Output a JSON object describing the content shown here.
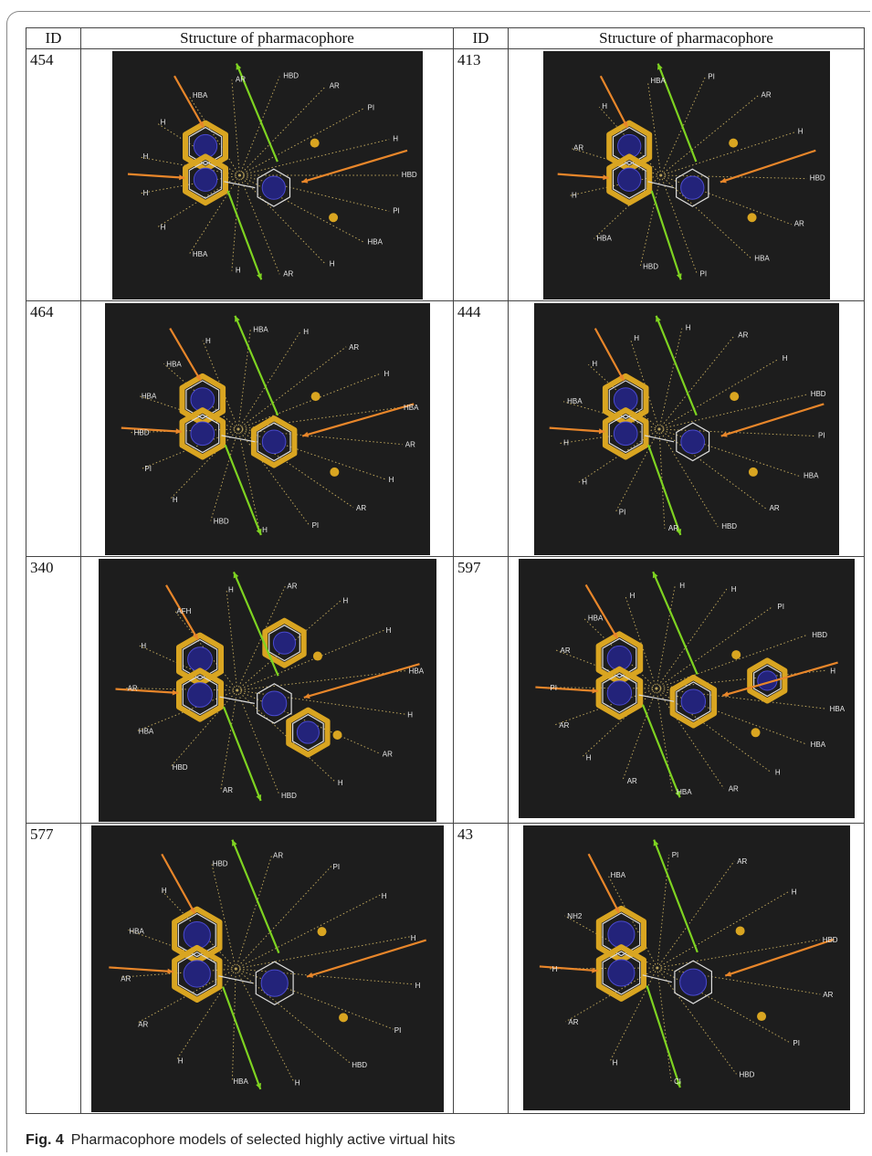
{
  "table": {
    "headers": [
      "ID",
      "Structure of pharmacophore",
      "ID",
      "Structure of pharmacophore"
    ],
    "rows": [
      {
        "left": {
          "id": "454",
          "panel_labels": [
            "HBD",
            "PI",
            "HBA",
            "H",
            "AR",
            "H",
            "HBA",
            "H",
            "H",
            "H",
            "H",
            "HBA",
            "AR",
            "HBD",
            "AR",
            "PI",
            "H"
          ]
        },
        "right": {
          "id": "413",
          "panel_labels": [
            "HBA",
            "PI",
            "HBD",
            "HBA",
            "H",
            "AR",
            "H",
            "HBA",
            "PI",
            "AR",
            "H",
            "HBD",
            "AR"
          ]
        }
      },
      {
        "left": {
          "id": "464",
          "panel_labels": [
            "HBD",
            "H",
            "PI",
            "HBD",
            "HBA",
            "HBA",
            "H",
            "HBA",
            "H",
            "AR",
            "H",
            "HBA",
            "AR",
            "H",
            "AR",
            "PI",
            "H"
          ]
        },
        "right": {
          "id": "444",
          "panel_labels": [
            "H",
            "HBA",
            "H",
            "H",
            "H",
            "AR",
            "H",
            "HBD",
            "PI",
            "HBA",
            "AR",
            "HBD",
            "AR",
            "PI",
            "H"
          ]
        }
      },
      {
        "left": {
          "id": "340",
          "panel_labels": [
            "AFH",
            "H",
            "AR",
            "H",
            "H",
            "HBA",
            "H",
            "AR",
            "H",
            "HBD",
            "AR",
            "HBD",
            "HBA",
            "AR",
            "H"
          ]
        },
        "right": {
          "id": "597",
          "panel_labels": [
            "H",
            "PI",
            "HBD",
            "H",
            "HBA",
            "HBA",
            "H",
            "AR",
            "HBA",
            "AR",
            "H",
            "AR",
            "PI",
            "AR",
            "HBA",
            "H",
            "H"
          ]
        }
      },
      {
        "left": {
          "id": "577",
          "panel_labels": [
            "H",
            "H",
            "PI",
            "HBD",
            "H",
            "HBA",
            "H",
            "AR",
            "AR",
            "HBA",
            "H",
            "HBD",
            "AR",
            "PI",
            "H"
          ]
        },
        "right": {
          "id": "43",
          "panel_labels": [
            "PI",
            "HBD",
            "Cl",
            "H",
            "AR",
            "H",
            "NH2",
            "HBA",
            "PI",
            "AR",
            "H",
            "HBD",
            "AR"
          ]
        }
      }
    ]
  },
  "caption": {
    "label": "Fig. 4",
    "text": "Pharmacophore models of selected highly active virtual hits"
  },
  "colors": {
    "panel_background": "#1d1d1d",
    "aromatic_ring": "#d9a521",
    "ring_center": "#23237a",
    "hbd_arrow": "#7ed321",
    "hba_arrow": "#e8862a",
    "hydrophobic_dots": "#bba35a"
  }
}
